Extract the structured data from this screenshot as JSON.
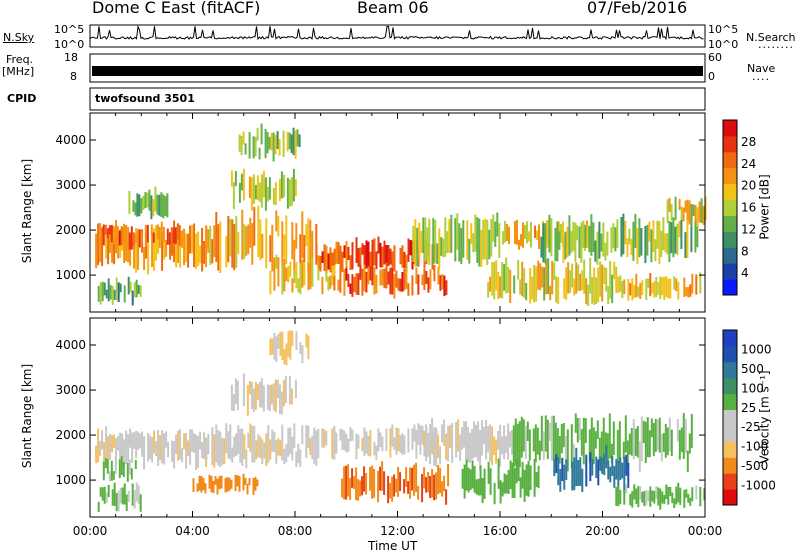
{
  "header": {
    "station": "Dome C East (fitACF)",
    "beam": "Beam 06",
    "date": "07/Feb/2016"
  },
  "noise_panel": {
    "left_label": "N.Sky",
    "right_label": "N.Search",
    "left_ticks": [
      "10^5",
      "10^0"
    ],
    "right_ticks": [
      "10^5",
      "10^0"
    ],
    "right_dots": "........"
  },
  "freq_panel": {
    "left_label_line1": "Freq.",
    "left_label_line2": "[MHz]",
    "right_label": "Nave",
    "left_ticks": [
      "18",
      "8"
    ],
    "right_ticks": [
      "60",
      "0"
    ],
    "right_dots": "...."
  },
  "cpid_panel": {
    "label": "CPID",
    "value": "twofsound 3501"
  },
  "colors": {
    "power_scale": [
      "#0a1aff",
      "#1f3fa8",
      "#2e6a8f",
      "#3e8f63",
      "#63b04a",
      "#b0cf3a",
      "#f2c21a",
      "#f59212",
      "#f06a10",
      "#e83310",
      "#dd0d0d"
    ],
    "velocity_scale": [
      "#dd0d0d",
      "#e8401a",
      "#f08a1a",
      "#f5c060",
      "#c8c8c8",
      "#c8c8c8",
      "#58b040",
      "#3e8f63",
      "#2f7a9a",
      "#2050b0",
      "#2040c0"
    ]
  },
  "chart_data": [
    {
      "type": "heatmap",
      "title": "",
      "xlabel": "Time UT",
      "ylabel": "Slant Range [km]",
      "x_ticks": [
        "00:00",
        "04:00",
        "08:00",
        "12:00",
        "16:00",
        "20:00",
        "00:00"
      ],
      "y_ticks": [
        "1000",
        "2000",
        "3000",
        "4000"
      ],
      "x_range_hours": [
        0,
        24
      ],
      "ylim": [
        180,
        4600
      ],
      "colorbar": {
        "label": "Power [dB]",
        "ticks": [
          "4",
          "8",
          "12",
          "16",
          "20",
          "24",
          "28"
        ],
        "range": [
          0,
          32
        ]
      },
      "echo_regions": [
        {
          "t0": 0.2,
          "t1": 4.5,
          "r0": 1100,
          "r1": 2150,
          "value": 22
        },
        {
          "t0": 0.5,
          "t1": 3.5,
          "r0": 1600,
          "r1": 2150,
          "value": 26
        },
        {
          "t0": 0.3,
          "t1": 2.0,
          "r0": 350,
          "r1": 900,
          "value": 12
        },
        {
          "t0": 1.5,
          "t1": 3.0,
          "r0": 2300,
          "r1": 2900,
          "value": 14
        },
        {
          "t0": 4.5,
          "t1": 8.8,
          "r0": 1100,
          "r1": 2400,
          "value": 22
        },
        {
          "t0": 5.5,
          "t1": 8.0,
          "r0": 2500,
          "r1": 3300,
          "value": 16
        },
        {
          "t0": 5.8,
          "t1": 8.2,
          "r0": 3600,
          "r1": 4300,
          "value": 14
        },
        {
          "t0": 7.0,
          "t1": 9.5,
          "r0": 600,
          "r1": 1400,
          "value": 20
        },
        {
          "t0": 8.8,
          "t1": 13.5,
          "r0": 1100,
          "r1": 1800,
          "value": 28
        },
        {
          "t0": 9.5,
          "t1": 14.0,
          "r0": 550,
          "r1": 1200,
          "value": 26
        },
        {
          "t0": 12.5,
          "t1": 16.0,
          "r0": 1200,
          "r1": 2350,
          "value": 16
        },
        {
          "t0": 16.0,
          "t1": 19.5,
          "r0": 1600,
          "r1": 2200,
          "value": 20
        },
        {
          "t0": 15.5,
          "t1": 20.5,
          "r0": 400,
          "r1": 1300,
          "value": 18
        },
        {
          "t0": 17.5,
          "t1": 23.8,
          "r0": 1300,
          "r1": 2300,
          "value": 14
        },
        {
          "t0": 20.5,
          "t1": 23.8,
          "r0": 450,
          "r1": 1000,
          "value": 20
        },
        {
          "t0": 22.5,
          "t1": 24.0,
          "r0": 2100,
          "r1": 2700,
          "value": 18
        }
      ]
    },
    {
      "type": "heatmap",
      "title": "",
      "xlabel": "Time UT",
      "ylabel": "Slant Range [km]",
      "x_ticks": [
        "00:00",
        "04:00",
        "08:00",
        "12:00",
        "16:00",
        "20:00",
        "00:00"
      ],
      "y_ticks": [
        "1000",
        "2000",
        "3000",
        "4000"
      ],
      "x_range_hours": [
        0,
        24
      ],
      "ylim": [
        180,
        4600
      ],
      "colorbar": {
        "label": "Velocity [m s⁻¹]",
        "ticks": [
          "1000",
          "500",
          "100",
          "25",
          "-25",
          "-100",
          "-500",
          "-1000"
        ],
        "range": [
          -1000,
          1000
        ]
      },
      "echo_regions": [
        {
          "t0": 0.2,
          "t1": 4.5,
          "r0": 1300,
          "r1": 2150,
          "value": 0
        },
        {
          "t0": 0.3,
          "t1": 2.0,
          "r0": 350,
          "r1": 900,
          "value": 80
        },
        {
          "t0": 0.5,
          "t1": 1.8,
          "r0": 1000,
          "r1": 1500,
          "value": 90
        },
        {
          "t0": 4.5,
          "t1": 9.5,
          "r0": 1300,
          "r1": 2200,
          "value": 0
        },
        {
          "t0": 5.5,
          "t1": 8.0,
          "r0": 2500,
          "r1": 3300,
          "value": 0
        },
        {
          "t0": 7.0,
          "t1": 8.5,
          "r0": 3600,
          "r1": 4300,
          "value": -20
        },
        {
          "t0": 4.0,
          "t1": 6.5,
          "r0": 700,
          "r1": 1100,
          "value": -150
        },
        {
          "t0": 9.5,
          "t1": 13.5,
          "r0": 1500,
          "r1": 2200,
          "value": 0
        },
        {
          "t0": 9.8,
          "t1": 14.0,
          "r0": 550,
          "r1": 1350,
          "value": -250
        },
        {
          "t0": 13.0,
          "t1": 16.5,
          "r0": 1300,
          "r1": 2300,
          "value": 0
        },
        {
          "t0": 14.5,
          "t1": 17.5,
          "r0": 500,
          "r1": 1400,
          "value": 120
        },
        {
          "t0": 16.5,
          "t1": 23.5,
          "r0": 1300,
          "r1": 2400,
          "value": 100
        },
        {
          "t0": 18.0,
          "t1": 21.0,
          "r0": 800,
          "r1": 1700,
          "value": 600
        },
        {
          "t0": 20.5,
          "t1": 24.0,
          "r0": 400,
          "r1": 900,
          "value": 90
        }
      ]
    }
  ]
}
